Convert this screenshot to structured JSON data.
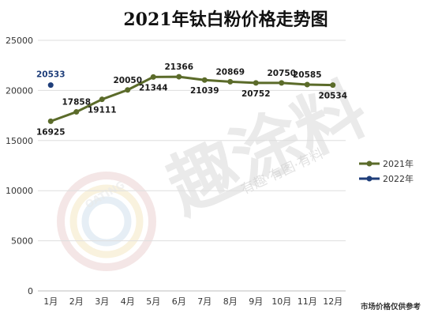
{
  "watermark": {
    "brand": "趣涂料",
    "slogan": "有趣·有图·有料",
    "logo_text": "OATING"
  },
  "footnote": "市场价格仅供参考",
  "chart_data": {
    "type": "line",
    "title": "2021年钛白粉价格走势图",
    "xlabel": "",
    "ylabel": "",
    "categories": [
      "1月",
      "2月",
      "3月",
      "4月",
      "5月",
      "6月",
      "7月",
      "8月",
      "9月",
      "10月",
      "11月",
      "12月"
    ],
    "ylim": [
      0,
      25000
    ],
    "yticks": [
      0,
      5000,
      10000,
      15000,
      20000,
      25000
    ],
    "grid": "horizontal",
    "legend_position": "right",
    "series": [
      {
        "name": "2021年",
        "color": "#5b6b2a",
        "values": [
          16925,
          17858,
          19111,
          20050,
          21344,
          21366,
          21039,
          20869,
          20752,
          20750,
          20585,
          20534
        ]
      },
      {
        "name": "2022年",
        "color": "#1f3e7a",
        "values": [
          20533,
          null,
          null,
          null,
          null,
          null,
          null,
          null,
          null,
          null,
          null,
          null
        ]
      }
    ]
  }
}
